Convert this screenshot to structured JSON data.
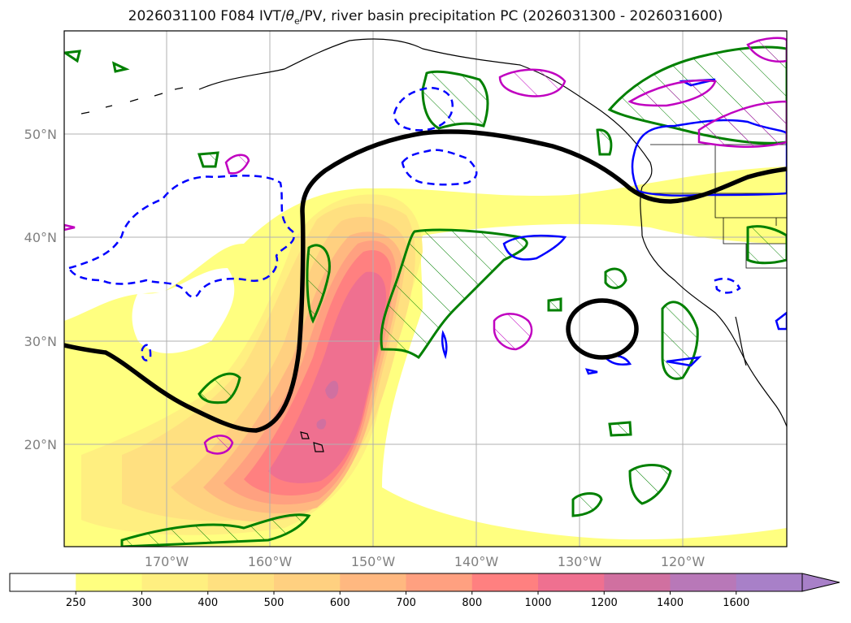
{
  "title": {
    "prefix": "2026031100 F084 IVT/",
    "theta": "θ",
    "theta_sub": "e",
    "suffix": "/PV, river basin precipitation PC (2026031300 - 2026031600)"
  },
  "map": {
    "lon_range": [
      -180,
      -110
    ],
    "lat_range": [
      10,
      60
    ],
    "lat_labels": [
      "50°N",
      "40°N",
      "30°N",
      "20°N"
    ],
    "lon_labels": [
      "170°W",
      "160°W",
      "150°W",
      "140°W",
      "130°W",
      "120°W"
    ]
  },
  "colorbar": {
    "levels": [
      "250",
      "300",
      "400",
      "500",
      "600",
      "700",
      "800",
      "1000",
      "1200",
      "1400",
      "1600"
    ],
    "colors": [
      "#ffffff",
      "#ffff80",
      "#ffef80",
      "#ffe080",
      "#ffd080",
      "#ffb880",
      "#ffa080",
      "#ff8080",
      "#ef7090",
      "#d070a0",
      "#b878b8",
      "#a880c8"
    ]
  },
  "colors": {
    "ivt_base": "#ffff80",
    "contour_green": "#008000",
    "contour_blue": "#0000ff",
    "contour_magenta": "#c000c0",
    "pv_line": "#000000"
  }
}
